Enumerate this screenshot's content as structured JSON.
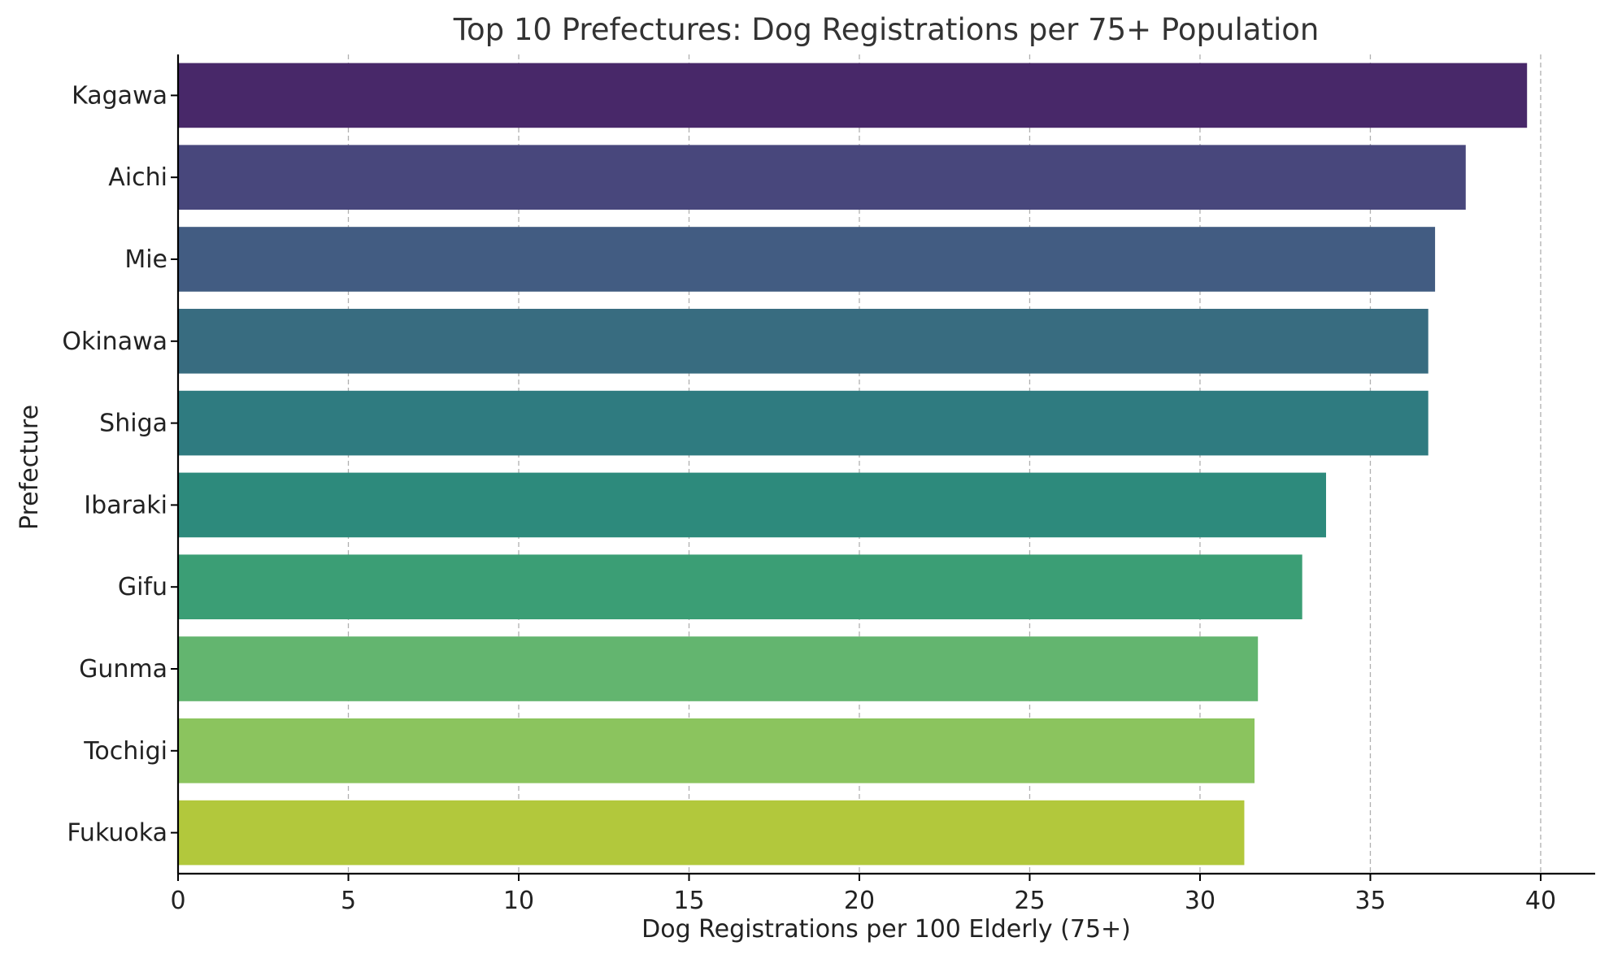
{
  "chart_data": {
    "type": "bar",
    "orientation": "horizontal",
    "title": "Top 10 Prefectures: Dog Registrations per 75+ Population",
    "xlabel": "Dog Registrations per 100 Elderly (75+)",
    "ylabel": "Prefecture",
    "xlim": [
      0,
      41.6
    ],
    "xticks": [
      "0",
      "5",
      "10",
      "15",
      "20",
      "25",
      "30",
      "35",
      "40"
    ],
    "grid": "x-dashed",
    "categories": [
      "Kagawa",
      "Aichi",
      "Mie",
      "Okinawa",
      "Shiga",
      "Ibaraki",
      "Gifu",
      "Gunma",
      "Tochigi",
      "Fukuoka"
    ],
    "values": [
      39.6,
      37.8,
      36.9,
      36.7,
      36.7,
      33.7,
      33.0,
      31.7,
      31.6,
      31.3
    ],
    "colors": [
      "#482869",
      "#48477c",
      "#425c82",
      "#386c80",
      "#2f7b80",
      "#2d8a7c",
      "#3b9e75",
      "#63b56f",
      "#8bc45e",
      "#b2c83c"
    ]
  }
}
